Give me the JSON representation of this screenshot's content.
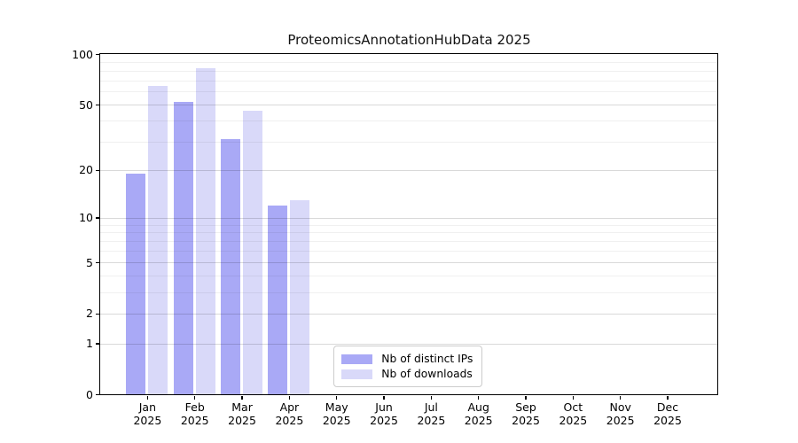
{
  "chart_data": {
    "type": "bar",
    "title": "ProteomicsAnnotationHubData 2025",
    "x_tick_year": "2025",
    "categories": [
      "Jan",
      "Feb",
      "Mar",
      "Apr",
      "May",
      "Jun",
      "Jul",
      "Aug",
      "Sep",
      "Oct",
      "Nov",
      "Dec"
    ],
    "series": [
      {
        "name": "Nb of distinct IPs",
        "color": "#a9a9f6",
        "values": [
          19,
          52,
          31,
          12,
          0,
          0,
          0,
          0,
          0,
          0,
          0,
          0
        ]
      },
      {
        "name": "Nb of downloads",
        "color": "#d9d9f9",
        "values": [
          65,
          83,
          46,
          13,
          0,
          0,
          0,
          0,
          0,
          0,
          0,
          0
        ]
      }
    ],
    "yscale": "log1p",
    "ylim": [
      0,
      100
    ],
    "yticks": [
      100,
      50,
      20,
      10,
      5,
      2,
      1,
      0
    ],
    "minor_yticks": [
      3,
      4,
      6,
      7,
      8,
      9,
      30,
      40,
      60,
      70,
      80,
      90
    ],
    "grid": "both",
    "legend_position": "lower center"
  }
}
